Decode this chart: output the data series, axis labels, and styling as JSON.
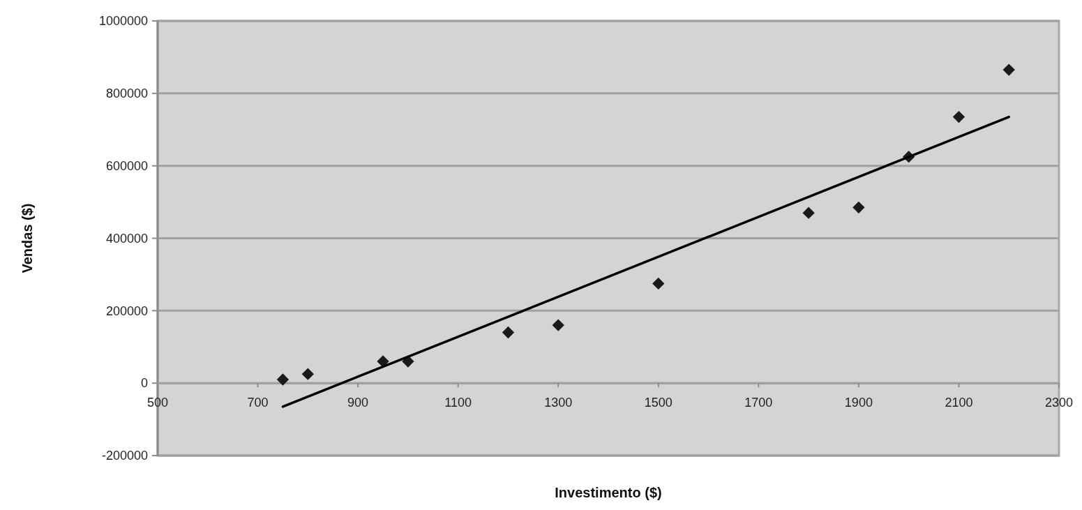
{
  "chart_data": {
    "type": "scatter",
    "xlabel": "Investimento ($)",
    "ylabel": "Vendas ($)",
    "xlim": [
      500,
      2300
    ],
    "xticks": [
      500,
      700,
      900,
      1100,
      1300,
      1500,
      1700,
      1900,
      2100,
      2300
    ],
    "ylim": [
      -200000,
      1000000
    ],
    "yticks": [
      -200000,
      0,
      200000,
      400000,
      600000,
      800000,
      1000000
    ],
    "grid": "y",
    "series": [
      {
        "marker": "diamond",
        "color": "#1a1a1a",
        "x": [
          750,
          800,
          950,
          1000,
          1200,
          1300,
          1500,
          1800,
          1900,
          2000,
          2100,
          2200
        ],
        "values": [
          10000,
          25000,
          60000,
          60000,
          140000,
          160000,
          275000,
          470000,
          485000,
          625000,
          735000,
          865000
        ]
      },
      {
        "type": "line",
        "color": "#000000",
        "line_style": "solid",
        "x": [
          750,
          2200
        ],
        "values": [
          -65000,
          735000
        ]
      }
    ]
  }
}
